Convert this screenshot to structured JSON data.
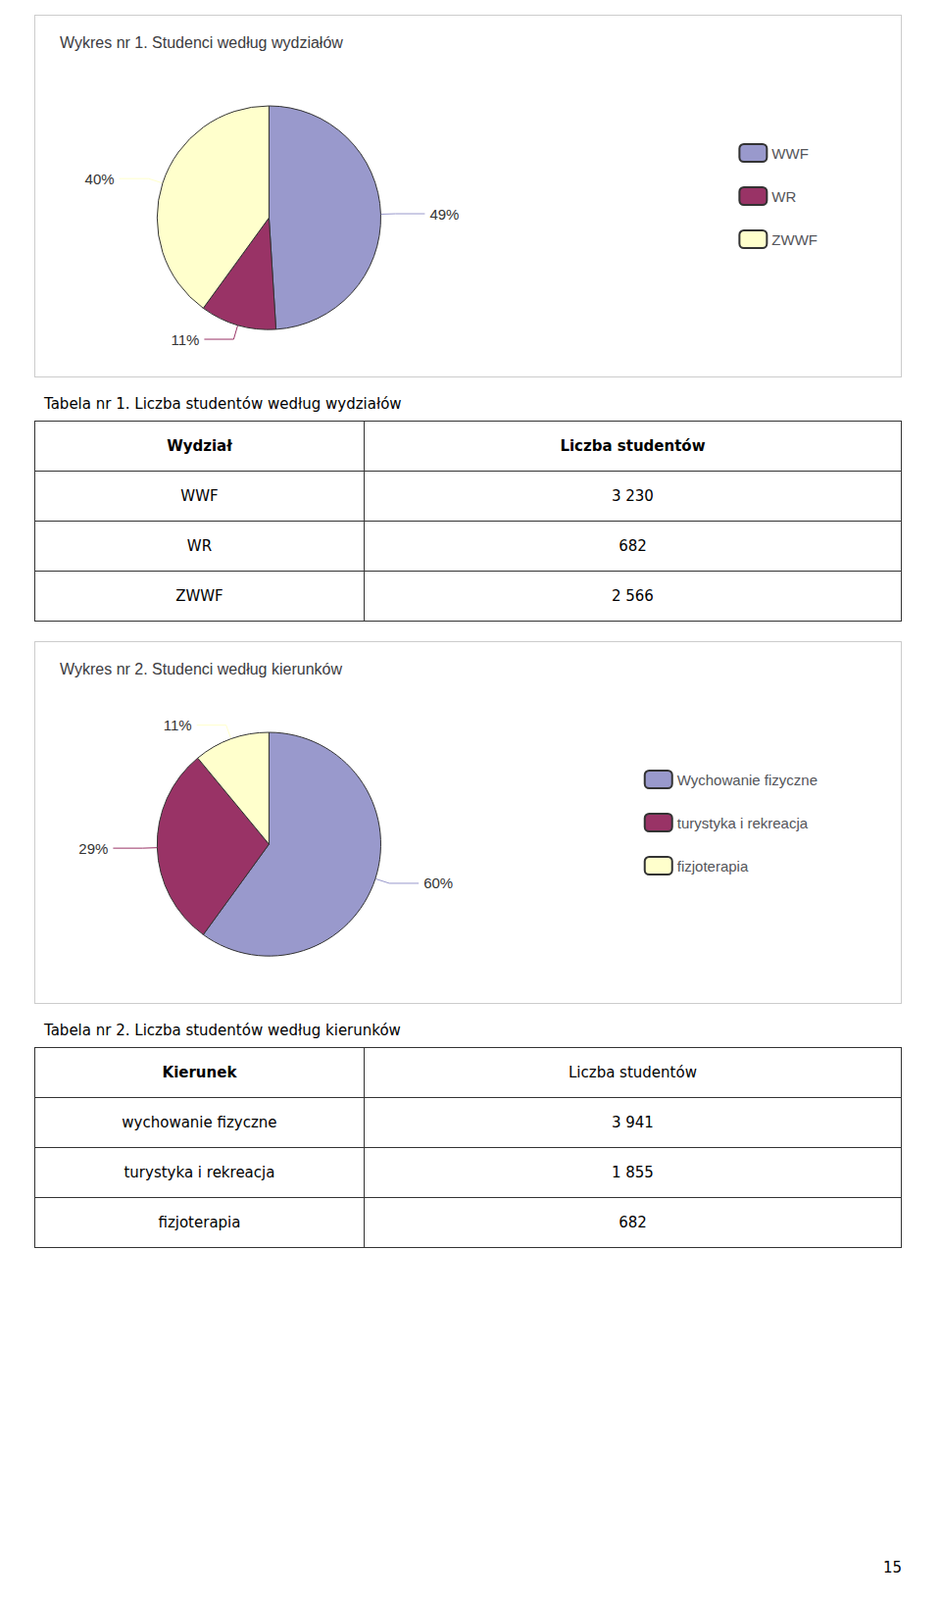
{
  "chart_data": [
    {
      "type": "pie",
      "title": "Wykres nr 1. Studenci według wydziałów",
      "categories": [
        "WWF",
        "WR",
        "ZWWF"
      ],
      "values": [
        49,
        11,
        40
      ],
      "value_labels": [
        "49%",
        "11%",
        "40%"
      ],
      "colors": [
        "#9999cc",
        "#993366",
        "#ffffcc"
      ],
      "legend": "right",
      "data_labels": true
    },
    {
      "type": "table",
      "title": "Tabela nr 1. Liczba studentów według wydziałów",
      "columns": [
        "Wydział",
        "Liczba studentów"
      ],
      "categories": [
        "WWF",
        "WR",
        "ZWWF"
      ],
      "values": [
        3230,
        682,
        2566
      ],
      "value_labels": [
        "3 230",
        "682",
        "2 566"
      ]
    },
    {
      "type": "pie",
      "title": "Wykres nr 2. Studenci według kierunków",
      "categories": [
        "Wychowanie fizyczne",
        "turystyka i rekreacja",
        "fizjoterapia"
      ],
      "values": [
        60,
        29,
        11
      ],
      "value_labels": [
        "60%",
        "29%",
        "11%"
      ],
      "colors": [
        "#9999cc",
        "#993366",
        "#ffffcc"
      ],
      "legend": "right",
      "data_labels": true
    },
    {
      "type": "table",
      "title": "Tabela nr 2. Liczba studentów według kierunków",
      "columns": [
        "Kierunek",
        "Liczba studentów"
      ],
      "categories": [
        "wychowanie fizyczne",
        "turystyka i rekreacja",
        "fizjoterapia"
      ],
      "values": [
        3941,
        1855,
        682
      ],
      "value_labels": [
        "3 941",
        "1 855",
        "682"
      ],
      "annotations": [
        "15"
      ]
    }
  ]
}
